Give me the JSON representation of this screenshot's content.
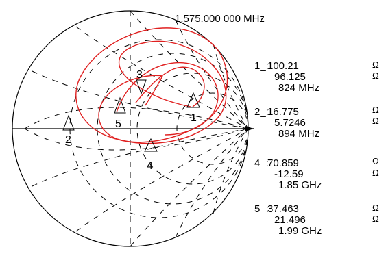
{
  "header": {
    "frequency": "1.575.000 000 MHz"
  },
  "chart_data": {
    "type": "smith-chart",
    "markers": [
      {
        "id": "1",
        "label": "1",
        "readout_id": "1_:",
        "real": "100.21",
        "imag": "96.125",
        "freq": "824 MHz"
      },
      {
        "id": "2",
        "label": "2",
        "readout_id": "2_:",
        "real": "16.775",
        "imag": "5.7246",
        "freq": "894 MHz"
      },
      {
        "id": "3",
        "label": "3"
      },
      {
        "id": "4",
        "label": "4",
        "readout_id": "4_:",
        "real": "70.859",
        "imag": "-12.59",
        "freq": "1.85 GHz"
      },
      {
        "id": "5",
        "label": "5",
        "readout_id": "5_:",
        "real": "37.463",
        "imag": "21.496",
        "freq": "1.99 GHz"
      }
    ],
    "units": {
      "ohm_symbol": "Ω"
    },
    "trace": {
      "color": "#e02020"
    },
    "grid": {
      "color": "#000000",
      "dashed": true
    }
  }
}
